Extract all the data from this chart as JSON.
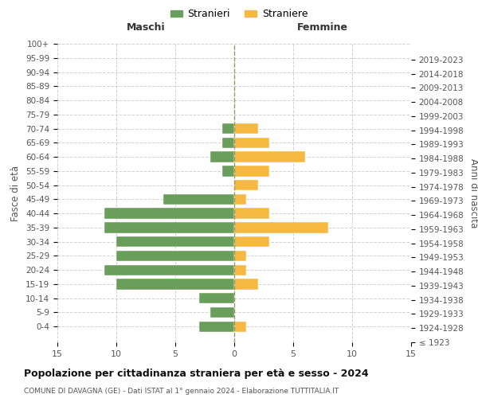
{
  "age_groups": [
    "100+",
    "95-99",
    "90-94",
    "85-89",
    "80-84",
    "75-79",
    "70-74",
    "65-69",
    "60-64",
    "55-59",
    "50-54",
    "45-49",
    "40-44",
    "35-39",
    "30-34",
    "25-29",
    "20-24",
    "15-19",
    "10-14",
    "5-9",
    "0-4"
  ],
  "birth_years": [
    "≤ 1923",
    "1924-1928",
    "1929-1933",
    "1934-1938",
    "1939-1943",
    "1944-1948",
    "1949-1953",
    "1954-1958",
    "1959-1963",
    "1964-1968",
    "1969-1973",
    "1974-1978",
    "1979-1983",
    "1984-1988",
    "1989-1993",
    "1994-1998",
    "1999-2003",
    "2004-2008",
    "2009-2013",
    "2014-2018",
    "2019-2023"
  ],
  "males": [
    0,
    0,
    0,
    0,
    0,
    0,
    1,
    1,
    2,
    1,
    0,
    6,
    11,
    11,
    10,
    10,
    11,
    10,
    3,
    2,
    3
  ],
  "females": [
    0,
    0,
    0,
    0,
    0,
    0,
    2,
    3,
    6,
    3,
    2,
    1,
    3,
    8,
    3,
    1,
    1,
    2,
    0,
    0,
    1
  ],
  "male_color": "#6a9e5b",
  "female_color": "#f5b942",
  "title": "Popolazione per cittadinanza straniera per età e sesso - 2024",
  "subtitle": "COMUNE DI DAVAGNA (GE) - Dati ISTAT al 1° gennaio 2024 - Elaborazione TUTTITALIA.IT",
  "ylabel_left": "Fasce di età",
  "ylabel_right": "Anni di nascita",
  "xlabel_left": "Maschi",
  "xlabel_right": "Femmine",
  "legend_male": "Stranieri",
  "legend_female": "Straniere",
  "xlim": 15,
  "background_color": "#ffffff",
  "grid_color": "#cccccc"
}
